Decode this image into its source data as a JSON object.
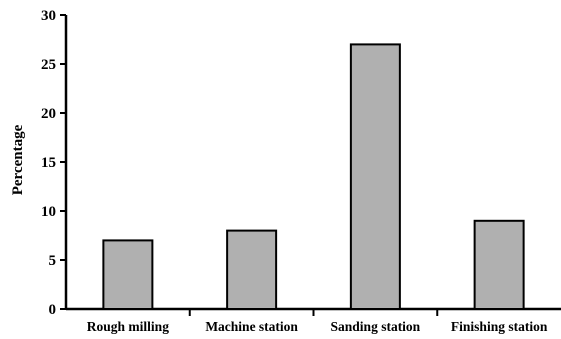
{
  "chart_data": {
    "type": "bar",
    "categories": [
      "Rough milling",
      "Machine station",
      "Sanding station",
      "Finishing station"
    ],
    "values": [
      7,
      8,
      27,
      9
    ],
    "ylabel": "Percentage",
    "xlabel": "",
    "ylim": [
      0,
      30
    ],
    "yticks": [
      "0",
      "5",
      "10",
      "15",
      "20",
      "25",
      "30"
    ],
    "grid": false,
    "bar_color": "#b0b0b0",
    "edge_color": "#000000"
  }
}
